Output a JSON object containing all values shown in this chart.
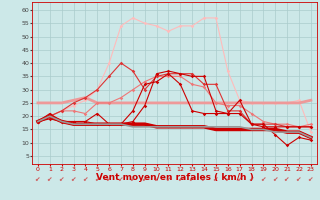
{
  "background_color": "#cce8e8",
  "grid_color": "#aacccc",
  "xlabel": "Vent moyen/en rafales ( km/h )",
  "xlabel_color": "#cc0000",
  "xlabel_fontsize": 6.5,
  "xtick_color": "#cc0000",
  "ytick_color": "#444444",
  "xlim": [
    -0.5,
    23.5
  ],
  "ylim": [
    2,
    63
  ],
  "yticks": [
    5,
    10,
    15,
    20,
    25,
    30,
    35,
    40,
    45,
    50,
    55,
    60
  ],
  "xticks": [
    0,
    1,
    2,
    3,
    4,
    5,
    6,
    7,
    8,
    9,
    10,
    11,
    12,
    13,
    14,
    15,
    16,
    17,
    18,
    19,
    20,
    21,
    22,
    23
  ],
  "lines": [
    {
      "x": [
        0,
        1,
        2,
        3,
        4,
        5,
        6,
        7,
        8,
        9,
        10,
        11,
        12,
        13,
        14,
        15,
        16,
        17,
        18,
        19,
        20,
        21,
        22,
        23
      ],
      "y": [
        18,
        21,
        18,
        18,
        18,
        21,
        17,
        17,
        22,
        32,
        33,
        36,
        32,
        22,
        21,
        21,
        21,
        26,
        17,
        17,
        13,
        9,
        12,
        11
      ],
      "color": "#cc0000",
      "lw": 0.8,
      "marker": "D",
      "markersize": 1.8,
      "zorder": 5
    },
    {
      "x": [
        0,
        1,
        2,
        3,
        4,
        5,
        6,
        7,
        8,
        9,
        10,
        11,
        12,
        13,
        14,
        15,
        16,
        17,
        18,
        19,
        20,
        21,
        22,
        23
      ],
      "y": [
        18,
        19,
        18,
        18,
        18,
        17,
        17,
        17,
        18,
        24,
        36,
        37,
        36,
        35,
        35,
        22,
        21,
        21,
        17,
        16,
        16,
        16,
        16,
        16
      ],
      "color": "#cc0000",
      "lw": 0.8,
      "marker": "D",
      "markersize": 1.8,
      "zorder": 5
    },
    {
      "x": [
        0,
        1,
        2,
        3,
        4,
        5,
        6,
        7,
        8,
        9,
        10,
        11,
        12,
        13,
        14,
        15,
        16,
        17,
        18,
        19,
        20,
        21,
        22,
        23
      ],
      "y": [
        18,
        20,
        18,
        17,
        17,
        17,
        17,
        17,
        17,
        17,
        16,
        16,
        16,
        16,
        16,
        15,
        15,
        15,
        15,
        15,
        15,
        14,
        14,
        12
      ],
      "color": "#cc0000",
      "lw": 1.5,
      "marker": null,
      "markersize": 0,
      "zorder": 6
    },
    {
      "x": [
        0,
        1,
        2,
        3,
        4,
        5,
        6,
        7,
        8,
        9,
        10,
        11,
        12,
        13,
        14,
        15,
        16,
        17,
        18,
        19,
        20,
        21,
        22,
        23
      ],
      "y": [
        18,
        20,
        18,
        17,
        17,
        17,
        17,
        17,
        17,
        17,
        16,
        16,
        16,
        16,
        16,
        15,
        15,
        15,
        15,
        15,
        15,
        14,
        14,
        12
      ],
      "color": "#cc0000",
      "lw": 2.5,
      "marker": null,
      "markersize": 0,
      "zorder": 4
    },
    {
      "x": [
        0,
        1,
        2,
        3,
        4,
        5,
        6,
        7,
        8,
        9,
        10,
        11,
        12,
        13,
        14,
        15,
        16,
        17,
        18,
        19,
        20,
        21,
        22,
        23
      ],
      "y": [
        25,
        25,
        25,
        26,
        27,
        25,
        25,
        25,
        25,
        25,
        25,
        25,
        25,
        25,
        25,
        25,
        25,
        25,
        25,
        25,
        25,
        25,
        25,
        26
      ],
      "color": "#ee9999",
      "lw": 2.0,
      "marker": null,
      "markersize": 0,
      "zorder": 3
    },
    {
      "x": [
        0,
        1,
        2,
        3,
        4,
        5,
        6,
        7,
        8,
        9,
        10,
        11,
        12,
        13,
        14,
        15,
        16,
        17,
        18,
        19,
        20,
        21,
        22,
        23
      ],
      "y": [
        18,
        20,
        22,
        22,
        21,
        25,
        25,
        27,
        30,
        33,
        35,
        35,
        35,
        32,
        31,
        25,
        24,
        24,
        21,
        18,
        17,
        17,
        16,
        17
      ],
      "color": "#ee7777",
      "lw": 0.8,
      "marker": "D",
      "markersize": 1.8,
      "zorder": 4
    },
    {
      "x": [
        0,
        1,
        2,
        3,
        4,
        5,
        6,
        7,
        8,
        9,
        10,
        11,
        12,
        13,
        14,
        15,
        16,
        17,
        18,
        19,
        20,
        21,
        22,
        23
      ],
      "y": [
        18,
        20,
        22,
        25,
        27,
        30,
        35,
        40,
        37,
        30,
        35,
        36,
        36,
        36,
        32,
        32,
        22,
        22,
        17,
        17,
        17,
        16,
        16,
        16
      ],
      "color": "#dd3333",
      "lw": 0.8,
      "marker": "D",
      "markersize": 1.8,
      "zorder": 4
    },
    {
      "x": [
        0,
        1,
        2,
        3,
        4,
        5,
        6,
        7,
        8,
        9,
        10,
        11,
        12,
        13,
        14,
        15,
        16,
        17,
        18,
        19,
        20,
        21,
        22,
        23
      ],
      "y": [
        18,
        20,
        22,
        24,
        26,
        30,
        40,
        54,
        57,
        55,
        54,
        52,
        54,
        54,
        57,
        57,
        37,
        26,
        25,
        25,
        25,
        25,
        26,
        14
      ],
      "color": "#ffbbbb",
      "lw": 0.8,
      "marker": "D",
      "markersize": 1.8,
      "zorder": 2
    },
    {
      "x": [
        0,
        1,
        2,
        3,
        4,
        5,
        6,
        7,
        8,
        9,
        10,
        11,
        12,
        13,
        14,
        15,
        16,
        17,
        18,
        19,
        20,
        21,
        22,
        23
      ],
      "y": [
        18,
        20,
        18,
        17,
        17,
        17,
        17,
        17,
        16,
        16,
        16,
        16,
        16,
        16,
        16,
        16,
        16,
        16,
        15,
        15,
        14,
        14,
        14,
        12
      ],
      "color": "#999999",
      "lw": 1.2,
      "marker": null,
      "markersize": 0,
      "zorder": 6
    }
  ]
}
